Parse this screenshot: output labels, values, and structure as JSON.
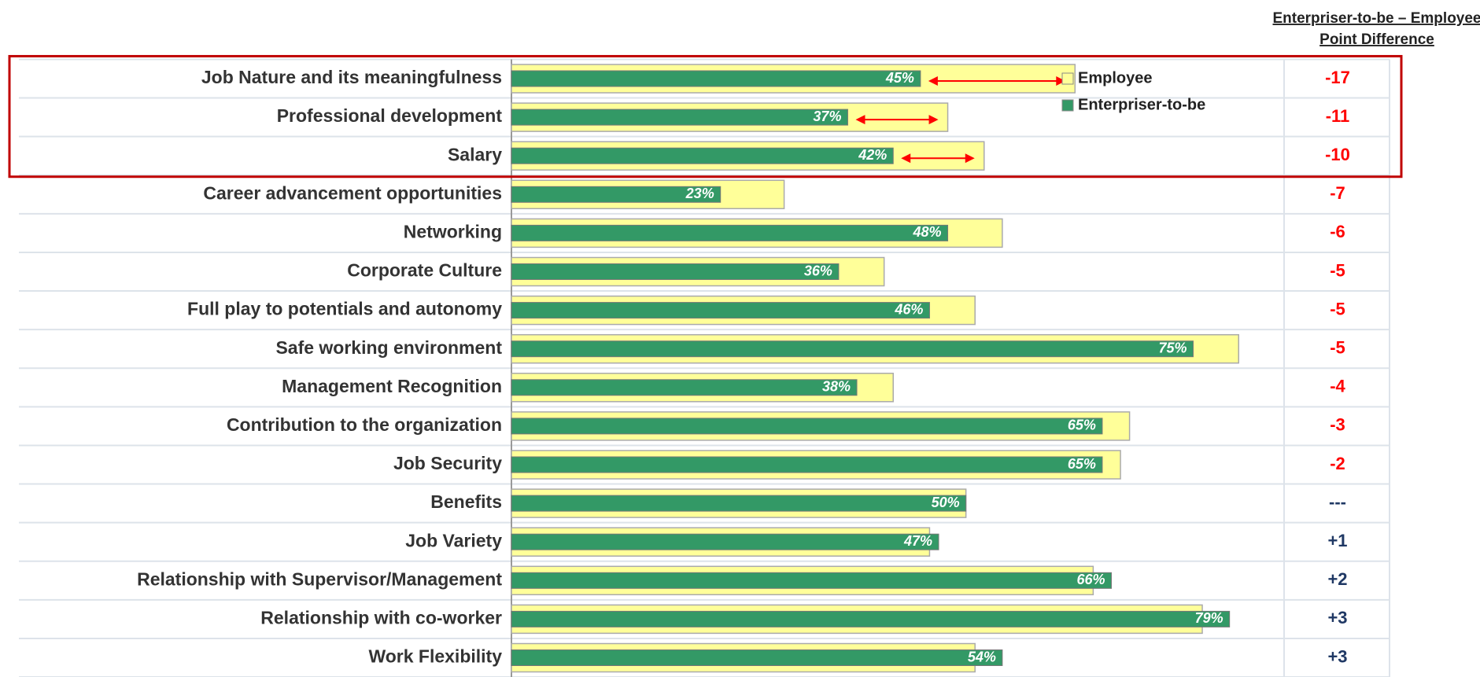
{
  "chart_data": {
    "type": "hbar",
    "categories": [
      "Job Nature and its meaningfulness",
      "Professional development",
      "Salary",
      "Career advancement opportunities",
      "Networking",
      "Corporate Culture",
      "Full play to potentials and autonomy",
      "Safe working environment",
      "Management Recognition",
      "Contribution to the organization",
      "Job Security",
      "Benefits",
      "Job Variety",
      "Relationship with Supervisor/Management",
      "Relationship with co-worker",
      "Work Flexibility"
    ],
    "series": [
      {
        "name": "Employee",
        "color": "#ffff99",
        "values": [
          62,
          48,
          52,
          30,
          54,
          41,
          51,
          80,
          42,
          68,
          67,
          50,
          46,
          64,
          76,
          51
        ]
      },
      {
        "name": "Enterpriser-to-be",
        "color": "#339966",
        "values": [
          45,
          37,
          42,
          23,
          48,
          36,
          46,
          75,
          38,
          65,
          65,
          50,
          47,
          66,
          79,
          54
        ],
        "value_labels": [
          "45%",
          "37%",
          "42%",
          "23%",
          "48%",
          "36%",
          "46%",
          "75%",
          "38%",
          "65%",
          "65%",
          "50%",
          "47%",
          "66%",
          "79%",
          "54%"
        ]
      }
    ],
    "xlim": [
      0,
      85
    ],
    "point_difference": {
      "title": [
        "Enterpriser-to-be – Employee",
        "Point Difference"
      ],
      "values": [
        -17,
        -11,
        -10,
        -7,
        -6,
        -5,
        -5,
        -5,
        -4,
        -3,
        -2,
        0,
        1,
        2,
        3,
        3
      ],
      "value_labels": [
        "-17",
        "-11",
        "-10",
        "-7",
        "-6",
        "-5",
        "-5",
        "-5",
        "-4",
        "-3",
        "-2",
        "---",
        "+1",
        "+2",
        "+3",
        "+3"
      ],
      "negative_color": "#ff0000",
      "positive_color": "#1f3864"
    },
    "highlighted_rows": 3
  }
}
